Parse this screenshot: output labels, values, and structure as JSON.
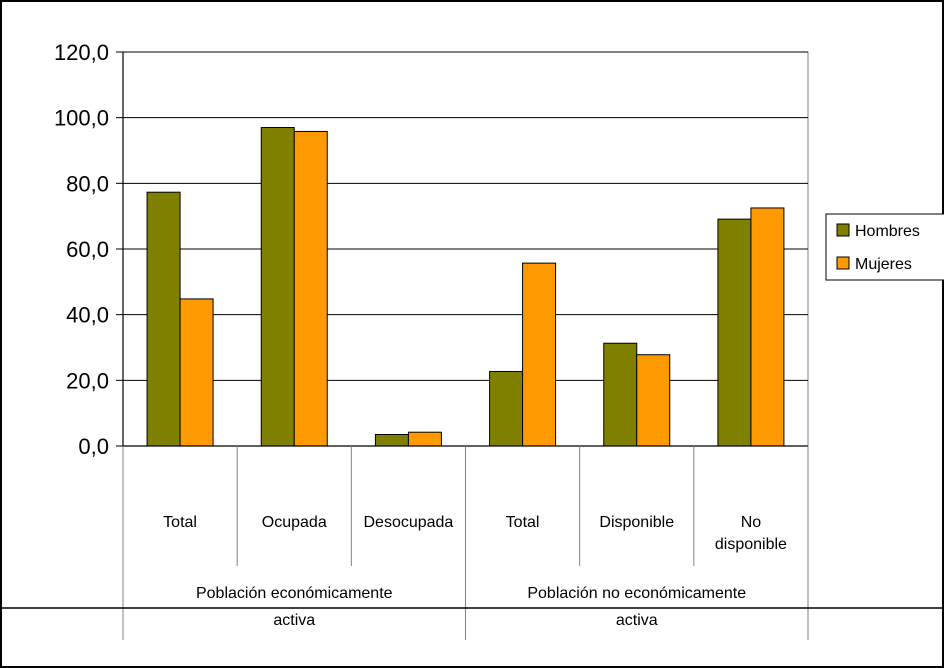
{
  "chart_data": {
    "type": "bar",
    "title": "",
    "xlabel": "",
    "ylabel": "",
    "ylim": [
      0,
      120
    ],
    "yticks": [
      "0,0",
      "20,0",
      "40,0",
      "60,0",
      "80,0",
      "100,0",
      "120,0"
    ],
    "grid": true,
    "legend_position": "right",
    "groups": [
      {
        "label": "Población económicamente activa",
        "categories": [
          0,
          1,
          2
        ]
      },
      {
        "label": "Población no económicamente activa",
        "categories": [
          3,
          4,
          5
        ]
      }
    ],
    "categories": [
      "Total",
      "Ocupada",
      "Desocupada",
      "Total",
      "Disponible",
      "No disponible"
    ],
    "series": [
      {
        "name": "Hombres",
        "color": "#808000",
        "values": [
          77.3,
          97.0,
          3.5,
          22.7,
          31.3,
          69.1
        ]
      },
      {
        "name": "Mujeres",
        "color": "#FF9900",
        "values": [
          44.8,
          95.8,
          4.2,
          55.7,
          27.8,
          72.5
        ]
      }
    ]
  }
}
